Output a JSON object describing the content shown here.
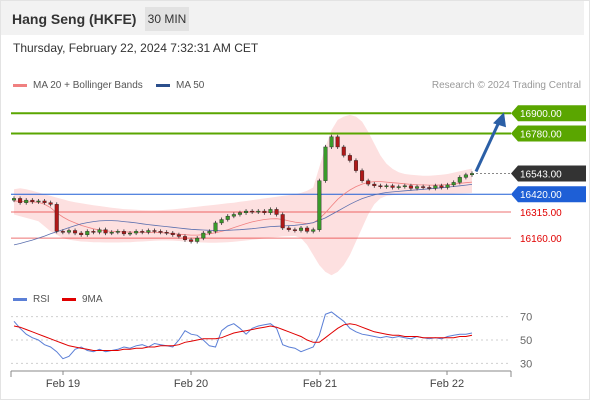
{
  "header": {
    "symbol": "Hang Seng (HKFE)",
    "interval": "30 MIN",
    "datetime": "Thursday, February 22, 2024 7:32:31 AM CET"
  },
  "legend": {
    "ma20_label": "MA 20 + Bollinger Bands",
    "ma20_color": "#f08080",
    "ma50_label": "MA 50",
    "ma50_color": "#2b4f8c",
    "copyright": "Research © 2024 Trading Central"
  },
  "chart_data": {
    "type": "line",
    "title": "",
    "xlabel": "",
    "ylabel": "",
    "x_ticks": [
      "Feb 19",
      "Feb 20",
      "Feb 21",
      "Feb 22"
    ],
    "ylim": [
      15900,
      16990
    ],
    "levels": [
      {
        "value": 16900,
        "label": "16900.00",
        "color": "#5aa600",
        "kind": "resistance"
      },
      {
        "value": 16780,
        "label": "16780.00",
        "color": "#5aa600",
        "kind": "resistance"
      },
      {
        "value": 16543,
        "label": "16543.00",
        "color": "#333333",
        "kind": "last"
      },
      {
        "value": 16420,
        "label": "16420.00",
        "color": "#1e5fd6",
        "kind": "pivot"
      },
      {
        "value": 16315,
        "label": "16315.00",
        "color": "#e00000",
        "kind": "support"
      },
      {
        "value": 16160,
        "label": "16160.00",
        "color": "#e00000",
        "kind": "support"
      }
    ],
    "close_series": [
      16395,
      16370,
      16385,
      16375,
      16380,
      16370,
      16360,
      16200,
      16195,
      16205,
      16190,
      16180,
      16200,
      16195,
      16210,
      16190,
      16195,
      16200,
      16185,
      16190,
      16200,
      16195,
      16205,
      16200,
      16195,
      16190,
      16180,
      16170,
      16150,
      16140,
      16160,
      16190,
      16200,
      16250,
      16270,
      16290,
      16300,
      16310,
      16320,
      16315,
      16320,
      16310,
      16330,
      16300,
      16220,
      16210,
      16205,
      16220,
      16200,
      16210,
      16500,
      16700,
      16760,
      16700,
      16650,
      16620,
      16560,
      16500,
      16480,
      16470,
      16465,
      16470,
      16460,
      16465,
      16470,
      16455,
      16465,
      16460,
      16455,
      16470,
      16460,
      16475,
      16490,
      16520,
      16535,
      16543
    ],
    "ma20_series": [
      16380,
      16378,
      16376,
      16374,
      16372,
      16360,
      16340,
      16310,
      16285,
      16265,
      16250,
      16235,
      16225,
      16215,
      16208,
      16203,
      16200,
      16198,
      16197,
      16196,
      16195,
      16194,
      16193,
      16193,
      16192,
      16190,
      16187,
      16183,
      16180,
      16178,
      16178,
      16180,
      16185,
      16192,
      16200,
      16210,
      16222,
      16234,
      16246,
      16256,
      16264,
      16270,
      16274,
      16275,
      16270,
      16262,
      16255,
      16250,
      16246,
      16250,
      16275,
      16310,
      16350,
      16390,
      16420,
      16445,
      16465,
      16480,
      16490,
      16495,
      16495,
      16492,
      16488,
      16485,
      16482,
      16478,
      16476,
      16475,
      16474,
      16474,
      16475,
      16477,
      16480,
      16484,
      16488,
      16492
    ],
    "ma50_series": [
      16120,
      16128,
      16138,
      16148,
      16160,
      16172,
      16186,
      16198,
      16210,
      16222,
      16234,
      16244,
      16252,
      16258,
      16262,
      16264,
      16264,
      16262,
      16258,
      16254,
      16250,
      16245,
      16240,
      16236,
      16232,
      16228,
      16224,
      16220,
      16216,
      16212,
      16210,
      16208,
      16206,
      16205,
      16205,
      16206,
      16208,
      16210,
      16213,
      16216,
      16220,
      16224,
      16228,
      16230,
      16232,
      16234,
      16236,
      16240,
      16245,
      16252,
      16265,
      16280,
      16300,
      16320,
      16340,
      16360,
      16378,
      16394,
      16406,
      16416,
      16424,
      16430,
      16434,
      16437,
      16440,
      16443,
      16446,
      16449,
      16452,
      16455,
      16458,
      16462,
      16466,
      16470,
      16474,
      16478
    ],
    "bb_upper": [
      16450,
      16455,
      16450,
      16440,
      16430,
      16420,
      16410,
      16400,
      16390,
      16380,
      16372,
      16366,
      16360,
      16355,
      16350,
      16345,
      16340,
      16336,
      16332,
      16330,
      16328,
      16326,
      16325,
      16325,
      16326,
      16328,
      16330,
      16334,
      16338,
      16342,
      16346,
      16350,
      16354,
      16358,
      16362,
      16366,
      16370,
      16375,
      16380,
      16385,
      16390,
      16395,
      16400,
      16405,
      16410,
      16415,
      16420,
      16428,
      16440,
      16460,
      16580,
      16700,
      16800,
      16860,
      16880,
      16890,
      16880,
      16850,
      16790,
      16720,
      16650,
      16600,
      16570,
      16550,
      16540,
      16535,
      16532,
      16530,
      16530,
      16532,
      16535,
      16540,
      16548,
      16556,
      16564,
      16572
    ],
    "bb_lower": [
      16300,
      16290,
      16280,
      16270,
      16260,
      16230,
      16200,
      16180,
      16160,
      16150,
      16145,
      16140,
      16138,
      16136,
      16135,
      16134,
      16134,
      16134,
      16135,
      16136,
      16138,
      16140,
      16142,
      16144,
      16146,
      16146,
      16145,
      16143,
      16140,
      16138,
      16136,
      16134,
      16133,
      16133,
      16134,
      16136,
      16139,
      16142,
      16146,
      16150,
      16154,
      16158,
      16162,
      16166,
      16170,
      16172,
      16173,
      16160,
      16120,
      16060,
      16000,
      15960,
      15940,
      15960,
      16000,
      16060,
      16140,
      16220,
      16300,
      16360,
      16395,
      16410,
      16415,
      16418,
      16420,
      16420,
      16420,
      16420,
      16420,
      16420,
      16420,
      16421,
      16422,
      16424,
      16426,
      16428
    ],
    "projection": {
      "from": 16543,
      "to": 16900
    },
    "rsi": {
      "legend": [
        "RSI",
        "9MA"
      ],
      "ticks": [
        70,
        50,
        30
      ],
      "ylim": [
        20,
        80
      ],
      "rsi_color": "#5b7fd6",
      "ma_color": "#e00000",
      "rsi_series": [
        66,
        60,
        55,
        52,
        50,
        46,
        44,
        40,
        34,
        36,
        42,
        44,
        41,
        40,
        42,
        40,
        41,
        42,
        44,
        43,
        45,
        46,
        44,
        47,
        46,
        45,
        44,
        50,
        58,
        55,
        54,
        50,
        45,
        44,
        58,
        62,
        64,
        60,
        55,
        60,
        62,
        63,
        64,
        60,
        46,
        44,
        43,
        40,
        42,
        44,
        54,
        72,
        74,
        70,
        66,
        60,
        57,
        55,
        54,
        53,
        52,
        53,
        52,
        53,
        52,
        51,
        53,
        52,
        51,
        52,
        51,
        53,
        54,
        55,
        55,
        56
      ],
      "ma_series": [
        62,
        61,
        59,
        57,
        55,
        53,
        51,
        49,
        47,
        45,
        44,
        43,
        42,
        41,
        41,
        41,
        41,
        41,
        42,
        42,
        43,
        43,
        44,
        44,
        45,
        45,
        45,
        46,
        48,
        49,
        50,
        51,
        51,
        51,
        52,
        54,
        56,
        57,
        58,
        59,
        60,
        61,
        62,
        61,
        59,
        57,
        55,
        53,
        50,
        48,
        48,
        52,
        56,
        60,
        63,
        64,
        63,
        61,
        59,
        57,
        56,
        55,
        54,
        54,
        53,
        53,
        53,
        52,
        52,
        52,
        52,
        52,
        52,
        53,
        53,
        54
      ]
    }
  }
}
